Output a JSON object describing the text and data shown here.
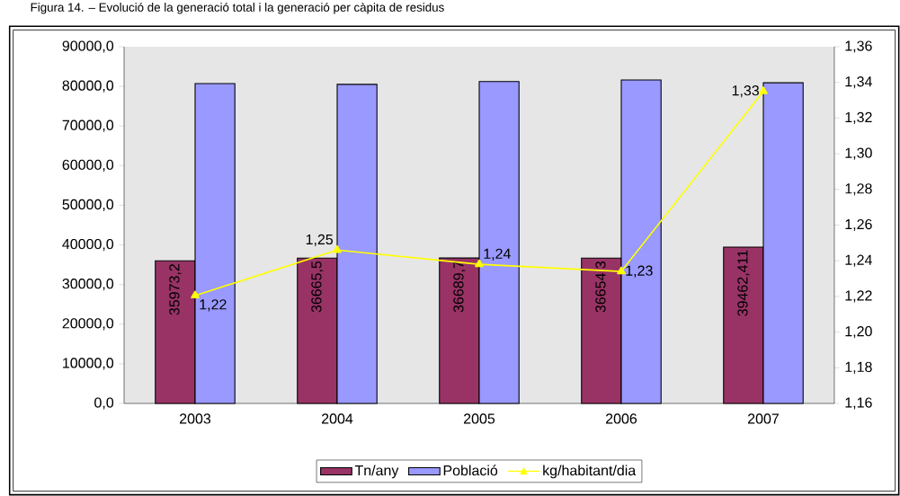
{
  "chart_data": {
    "type": "bar",
    "title": "Figura 14. – Evolució de la generació total i la generació per càpita de residus",
    "categories": [
      "2003",
      "2004",
      "2005",
      "2006",
      "2007"
    ],
    "series": [
      {
        "name": "Tn/any",
        "color": "#993366",
        "values": [
          35973.2,
          36665.5,
          36689.7,
          36654.3,
          39462.411
        ],
        "value_labels": [
          "35973,2",
          "36665,5",
          "36689,7",
          "36654,3",
          "39462,411"
        ]
      },
      {
        "name": "Població",
        "color": "#9999ff",
        "values": [
          80700,
          80500,
          81200,
          81600,
          80900
        ]
      },
      {
        "name": "kg/habitant/dia",
        "type": "line",
        "axis": "y2",
        "color": "#ffff00",
        "values": [
          1.2205,
          1.246,
          1.238,
          1.234,
          1.335
        ],
        "value_labels": [
          "1,22",
          "1,25",
          "1,24",
          "1,23",
          "1,33"
        ]
      }
    ],
    "ylim": [
      0,
      90000
    ],
    "yticks": [
      {
        "value": 0,
        "label": "0,0"
      },
      {
        "value": 10000,
        "label": "10000,0"
      },
      {
        "value": 20000,
        "label": "20000,0"
      },
      {
        "value": 30000,
        "label": "30000,0"
      },
      {
        "value": 40000,
        "label": "40000,0"
      },
      {
        "value": 50000,
        "label": "50000,0"
      },
      {
        "value": 60000,
        "label": "60000,0"
      },
      {
        "value": 70000,
        "label": "70000,0"
      },
      {
        "value": 80000,
        "label": "80000,0"
      },
      {
        "value": 90000,
        "label": "90000,0"
      }
    ],
    "y2lim": [
      1.16,
      1.36
    ],
    "y2ticks": [
      {
        "value": 1.16,
        "label": "1,16"
      },
      {
        "value": 1.18,
        "label": "1,18"
      },
      {
        "value": 1.2,
        "label": "1,20"
      },
      {
        "value": 1.22,
        "label": "1,22"
      },
      {
        "value": 1.24,
        "label": "1,24"
      },
      {
        "value": 1.26,
        "label": "1,26"
      },
      {
        "value": 1.28,
        "label": "1,28"
      },
      {
        "value": 1.3,
        "label": "1,30"
      },
      {
        "value": 1.32,
        "label": "1,32"
      },
      {
        "value": 1.34,
        "label": "1,34"
      },
      {
        "value": 1.36,
        "label": "1,36"
      }
    ],
    "marker": "triangle",
    "legend": "bottom"
  }
}
